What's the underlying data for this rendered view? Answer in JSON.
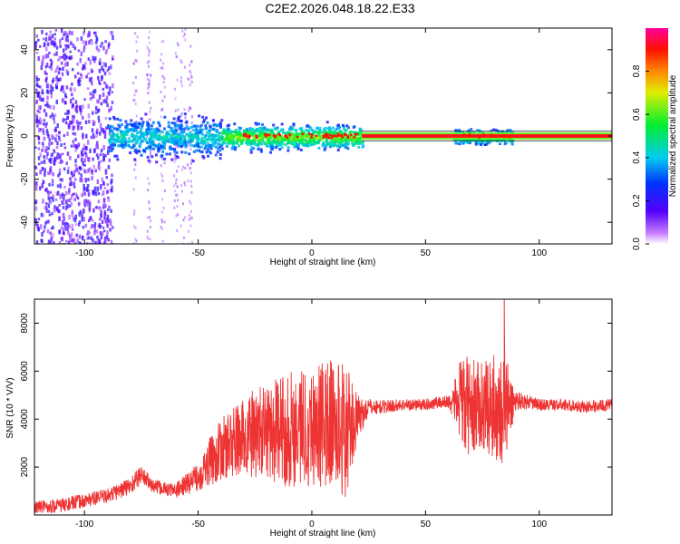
{
  "title": "C2E2.2026.048.18.22.E33",
  "colors": {
    "snr_line": "#ee3333",
    "axis": "#000000",
    "background": "#ffffff"
  },
  "chart_data": [
    {
      "type": "heatmap",
      "name": "spectrogram",
      "xlabel": "Height of straight line (km)",
      "ylabel": "Frequency (Hz)",
      "xlim": [
        -122,
        132
      ],
      "ylim": [
        -50,
        50
      ],
      "xticks": [
        -100,
        -50,
        0,
        50,
        100
      ],
      "yticks": [
        -40,
        -20,
        0,
        20,
        40
      ],
      "grid": false,
      "colormap": "rainbow (violet → blue → cyan → green → yellow → red → magenta)",
      "colorbar": {
        "label": "Normalized spectral amplitude",
        "range": [
          0.0,
          1.0
        ],
        "ticks": [
          0.0,
          0.2,
          0.4,
          0.6,
          0.8
        ]
      },
      "features": [
        {
          "x_range": [
            -122,
            -88
          ],
          "freq_spread": [
            -50,
            50
          ],
          "amplitude": "low (violet), broadband noise"
        },
        {
          "x_range": [
            -88,
            -52
          ],
          "freq_spread": [
            -50,
            50
          ],
          "amplitude": "very low, sparse columns"
        },
        {
          "x_range": [
            -90,
            22
          ],
          "freq_center": 0,
          "freq_halfwidth": 8,
          "amplitude": "medium (blue–cyan–green)"
        },
        {
          "x_range": [
            22,
            132
          ],
          "freq_center": 0,
          "freq_halfwidth": 1,
          "amplitude": "high (red/yellow narrow line)"
        },
        {
          "x_range": [
            62,
            88
          ],
          "freq_center": 0,
          "freq_halfwidth": 4,
          "amplitude": "medium (blue–green)"
        }
      ]
    },
    {
      "type": "line",
      "name": "snr",
      "xlabel": "Height of straight line (km)",
      "ylabel": "SNR (10 * V/V)",
      "xlim": [
        -122,
        132
      ],
      "ylim": [
        0,
        9000
      ],
      "xticks": [
        -100,
        -50,
        0,
        50,
        100
      ],
      "yticks": [
        2000,
        4000,
        6000,
        8000
      ],
      "grid": false,
      "series": [
        {
          "color": "#ee3333",
          "x": [
            -122,
            -110,
            -100,
            -90,
            -80,
            -75,
            -70,
            -60,
            -50,
            -45,
            -40,
            -35,
            -30,
            -25,
            -20,
            -15,
            -10,
            -5,
            0,
            5,
            10,
            15,
            20,
            25,
            30,
            40,
            50,
            55,
            60,
            63,
            66,
            70,
            75,
            80,
            85,
            88,
            90,
            95,
            100,
            110,
            120,
            132
          ],
          "y": [
            300,
            400,
            600,
            800,
            1200,
            1700,
            1200,
            1000,
            1600,
            2200,
            2700,
            3000,
            3200,
            3400,
            3500,
            3500,
            3600,
            3700,
            3700,
            3800,
            3800,
            3500,
            4000,
            4500,
            4500,
            4600,
            4600,
            4700,
            4700,
            4800,
            4600,
            4500,
            4600,
            4500,
            4400,
            4600,
            4800,
            4700,
            4600,
            4600,
            4500,
            4600
          ],
          "amplitude": [
            300,
            300,
            300,
            300,
            400,
            400,
            300,
            300,
            600,
            1000,
            1300,
            1500,
            1700,
            1900,
            2000,
            2200,
            2500,
            2500,
            2500,
            2700,
            2800,
            2800,
            1000,
            350,
            300,
            250,
            250,
            250,
            300,
            900,
            2200,
            2000,
            1800,
            2200,
            2500,
            1000,
            400,
            300,
            250,
            250,
            250,
            250
          ]
        }
      ]
    }
  ]
}
